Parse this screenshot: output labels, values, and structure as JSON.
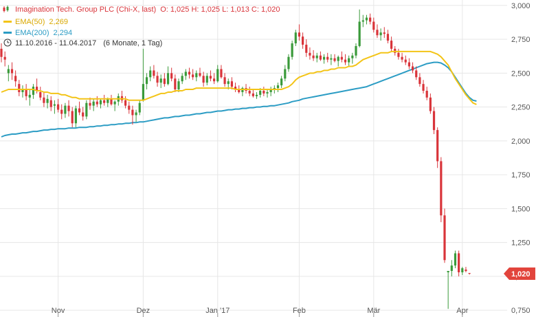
{
  "header": {
    "instrument": "Imagination Tech. Group PLC (Chi-X, last)",
    "ohlc": "O: 1,025  H: 1,025  L: 1,013  C: 1,020",
    "ema50_label": "EMA(50)",
    "ema50_value": "2,269",
    "ema200_label": "EMA(200)",
    "ema200_value": "2,294",
    "date_range": "11.10.2016 - 11.04.2017",
    "period": "(6 Monate, 1 Tag)",
    "instrument_icon": "candlestick-icon",
    "period_icon": "clock-icon"
  },
  "colors": {
    "up": "#3a9a3a",
    "down": "#d9343a",
    "ema50": "#f3c417",
    "ema200": "#2b9cc4",
    "price_badge": "#e2443c",
    "grid": "#e6e6e6"
  },
  "last_price_label": "1,020",
  "chart_data": {
    "type": "candlestick",
    "ylim": [
      0.7,
      3.04
    ],
    "y_ticks": [
      {
        "value": 0.75,
        "label": "0,750"
      },
      {
        "value": 1.0,
        "label": "1,000"
      },
      {
        "value": 1.25,
        "label": "1,250"
      },
      {
        "value": 1.5,
        "label": "1,500"
      },
      {
        "value": 1.75,
        "label": "1,750"
      },
      {
        "value": 2.0,
        "label": "2,000"
      },
      {
        "value": 2.25,
        "label": "2,250"
      },
      {
        "value": 2.5,
        "label": "2,500"
      },
      {
        "value": 2.75,
        "label": "2,750"
      },
      {
        "value": 3.0,
        "label": "3,000"
      }
    ],
    "x_ticks": [
      {
        "index": 16,
        "label": "Nov"
      },
      {
        "index": 40,
        "label": "Dez"
      },
      {
        "index": 61,
        "label": "Jan '17"
      },
      {
        "index": 84,
        "label": "Feb"
      },
      {
        "index": 105,
        "label": "Mär"
      },
      {
        "index": 130,
        "label": "Apr"
      }
    ],
    "last_close": 1.02,
    "ohlc": [
      [
        2.68,
        2.72,
        2.58,
        2.62
      ],
      [
        2.62,
        2.66,
        2.55,
        2.6
      ],
      [
        2.5,
        2.56,
        2.44,
        2.53
      ],
      [
        2.53,
        2.58,
        2.45,
        2.5
      ],
      [
        2.48,
        2.52,
        2.4,
        2.44
      ],
      [
        2.42,
        2.45,
        2.33,
        2.36
      ],
      [
        2.36,
        2.41,
        2.32,
        2.38
      ],
      [
        2.38,
        2.42,
        2.3,
        2.33
      ],
      [
        2.32,
        2.38,
        2.26,
        2.34
      ],
      [
        2.34,
        2.42,
        2.31,
        2.4
      ],
      [
        2.4,
        2.46,
        2.35,
        2.37
      ],
      [
        2.36,
        2.4,
        2.3,
        2.32
      ],
      [
        2.32,
        2.36,
        2.25,
        2.28
      ],
      [
        2.28,
        2.34,
        2.24,
        2.31
      ],
      [
        2.3,
        2.33,
        2.22,
        2.25
      ],
      [
        2.26,
        2.3,
        2.2,
        2.27
      ],
      [
        2.27,
        2.31,
        2.21,
        2.23
      ],
      [
        2.23,
        2.27,
        2.16,
        2.2
      ],
      [
        2.2,
        2.28,
        2.17,
        2.26
      ],
      [
        2.26,
        2.3,
        2.18,
        2.22
      ],
      [
        2.22,
        2.25,
        2.1,
        2.13
      ],
      [
        2.13,
        2.26,
        2.1,
        2.24
      ],
      [
        2.24,
        2.29,
        2.19,
        2.21
      ],
      [
        2.21,
        2.25,
        2.15,
        2.18
      ],
      [
        2.18,
        2.3,
        2.16,
        2.28
      ],
      [
        2.28,
        2.32,
        2.23,
        2.26
      ],
      [
        2.26,
        2.31,
        2.22,
        2.29
      ],
      [
        2.29,
        2.33,
        2.25,
        2.27
      ],
      [
        2.27,
        2.31,
        2.24,
        2.3
      ],
      [
        2.3,
        2.34,
        2.26,
        2.28
      ],
      [
        2.28,
        2.32,
        2.25,
        2.31
      ],
      [
        2.31,
        2.34,
        2.26,
        2.27
      ],
      [
        2.27,
        2.3,
        2.22,
        2.29
      ],
      [
        2.29,
        2.35,
        2.26,
        2.33
      ],
      [
        2.33,
        2.37,
        2.28,
        2.3
      ],
      [
        2.3,
        2.33,
        2.24,
        2.26
      ],
      [
        2.26,
        2.29,
        2.2,
        2.23
      ],
      [
        2.23,
        2.26,
        2.12,
        2.19
      ],
      [
        2.19,
        2.23,
        2.14,
        2.21
      ],
      [
        2.21,
        2.3,
        2.19,
        2.28
      ],
      [
        2.3,
        2.68,
        2.29,
        2.42
      ],
      [
        2.42,
        2.5,
        2.38,
        2.47
      ],
      [
        2.47,
        2.55,
        2.44,
        2.52
      ],
      [
        2.52,
        2.56,
        2.46,
        2.48
      ],
      [
        2.48,
        2.51,
        2.4,
        2.43
      ],
      [
        2.43,
        2.49,
        2.39,
        2.46
      ],
      [
        2.46,
        2.5,
        2.4,
        2.42
      ],
      [
        2.42,
        2.55,
        2.41,
        2.5
      ],
      [
        2.5,
        2.54,
        2.44,
        2.46
      ],
      [
        2.46,
        2.49,
        2.36,
        2.38
      ],
      [
        2.38,
        2.46,
        2.36,
        2.44
      ],
      [
        2.44,
        2.5,
        2.42,
        2.48
      ],
      [
        2.48,
        2.53,
        2.45,
        2.51
      ],
      [
        2.51,
        2.54,
        2.46,
        2.49
      ],
      [
        2.49,
        2.53,
        2.45,
        2.47
      ],
      [
        2.47,
        2.52,
        2.44,
        2.5
      ],
      [
        2.5,
        2.54,
        2.47,
        2.48
      ],
      [
        2.48,
        2.51,
        2.4,
        2.43
      ],
      [
        2.43,
        2.5,
        2.41,
        2.48
      ],
      [
        2.48,
        2.52,
        2.44,
        2.46
      ],
      [
        2.46,
        2.5,
        2.42,
        2.44
      ],
      [
        2.44,
        2.56,
        2.43,
        2.53
      ],
      [
        2.53,
        2.56,
        2.46,
        2.47
      ],
      [
        2.47,
        2.5,
        2.4,
        2.42
      ],
      [
        2.42,
        2.46,
        2.38,
        2.44
      ],
      [
        2.44,
        2.47,
        2.38,
        2.4
      ],
      [
        2.4,
        2.43,
        2.36,
        2.38
      ],
      [
        2.38,
        2.41,
        2.35,
        2.36
      ],
      [
        2.36,
        2.4,
        2.33,
        2.39
      ],
      [
        2.39,
        2.42,
        2.35,
        2.37
      ],
      [
        2.37,
        2.4,
        2.33,
        2.35
      ],
      [
        2.35,
        2.38,
        2.32,
        2.33
      ],
      [
        2.33,
        2.36,
        2.31,
        2.34
      ],
      [
        2.34,
        2.39,
        2.32,
        2.37
      ],
      [
        2.37,
        2.4,
        2.33,
        2.35
      ],
      [
        2.35,
        2.38,
        2.32,
        2.36
      ],
      [
        2.36,
        2.4,
        2.33,
        2.38
      ],
      [
        2.38,
        2.41,
        2.35,
        2.39
      ],
      [
        2.39,
        2.43,
        2.36,
        2.41
      ],
      [
        2.41,
        2.48,
        2.39,
        2.46
      ],
      [
        2.46,
        2.56,
        2.44,
        2.53
      ],
      [
        2.53,
        2.64,
        2.51,
        2.62
      ],
      [
        2.62,
        2.74,
        2.6,
        2.72
      ],
      [
        2.72,
        2.82,
        2.7,
        2.8
      ],
      [
        2.8,
        2.86,
        2.74,
        2.77
      ],
      [
        2.77,
        2.8,
        2.68,
        2.71
      ],
      [
        2.71,
        2.75,
        2.62,
        2.65
      ],
      [
        2.65,
        2.69,
        2.6,
        2.63
      ],
      [
        2.63,
        2.67,
        2.59,
        2.61
      ],
      [
        2.61,
        2.65,
        2.58,
        2.63
      ],
      [
        2.63,
        2.66,
        2.59,
        2.6
      ],
      [
        2.6,
        2.64,
        2.57,
        2.62
      ],
      [
        2.62,
        2.65,
        2.58,
        2.6
      ],
      [
        2.6,
        2.64,
        2.56,
        2.61
      ],
      [
        2.61,
        2.64,
        2.58,
        2.59
      ],
      [
        2.59,
        2.63,
        2.55,
        2.62
      ],
      [
        2.62,
        2.66,
        2.58,
        2.6
      ],
      [
        2.6,
        2.64,
        2.56,
        2.58
      ],
      [
        2.58,
        2.63,
        2.55,
        2.61
      ],
      [
        2.61,
        2.65,
        2.57,
        2.63
      ],
      [
        2.63,
        2.72,
        2.61,
        2.7
      ],
      [
        2.7,
        2.97,
        2.69,
        2.88
      ],
      [
        2.88,
        2.93,
        2.84,
        2.89
      ],
      [
        2.89,
        2.93,
        2.86,
        2.91
      ],
      [
        2.91,
        2.94,
        2.86,
        2.88
      ],
      [
        2.88,
        2.91,
        2.8,
        2.82
      ],
      [
        2.82,
        2.86,
        2.76,
        2.78
      ],
      [
        2.78,
        2.83,
        2.74,
        2.8
      ],
      [
        2.8,
        2.84,
        2.76,
        2.79
      ],
      [
        2.79,
        2.82,
        2.72,
        2.74
      ],
      [
        2.74,
        2.77,
        2.66,
        2.68
      ],
      [
        2.68,
        2.7,
        2.63,
        2.65
      ],
      [
        2.65,
        2.68,
        2.6,
        2.62
      ],
      [
        2.62,
        2.65,
        2.58,
        2.6
      ],
      [
        2.6,
        2.63,
        2.56,
        2.58
      ],
      [
        2.58,
        2.61,
        2.53,
        2.55
      ],
      [
        2.55,
        2.58,
        2.5,
        2.52
      ],
      [
        2.52,
        2.55,
        2.45,
        2.47
      ],
      [
        2.47,
        2.5,
        2.4,
        2.42
      ],
      [
        2.42,
        2.45,
        2.35,
        2.37
      ],
      [
        2.37,
        2.4,
        2.3,
        2.32
      ],
      [
        2.32,
        2.35,
        2.2,
        2.22
      ],
      [
        2.22,
        2.25,
        2.05,
        2.08
      ],
      [
        2.08,
        2.1,
        1.8,
        1.85
      ],
      [
        1.85,
        1.88,
        1.4,
        1.45
      ],
      [
        1.45,
        1.5,
        1.1,
        1.12
      ],
      [
        1.03,
        1.03,
        0.76,
        1.04
      ],
      [
        1.04,
        1.12,
        1.0,
        1.08
      ],
      [
        1.08,
        1.19,
        1.06,
        1.17
      ],
      [
        1.17,
        1.19,
        1.0,
        1.03
      ],
      [
        1.03,
        1.07,
        1.01,
        1.06
      ],
      [
        1.05,
        1.07,
        1.03,
        1.04
      ],
      [
        1.025,
        1.025,
        1.013,
        1.02
      ]
    ],
    "ema50": [
      2.36,
      2.37,
      2.38,
      2.38,
      2.38,
      2.38,
      2.38,
      2.38,
      2.38,
      2.38,
      2.37,
      2.37,
      2.36,
      2.36,
      2.35,
      2.35,
      2.35,
      2.34,
      2.34,
      2.33,
      2.32,
      2.32,
      2.31,
      2.31,
      2.31,
      2.31,
      2.31,
      2.31,
      2.31,
      2.31,
      2.31,
      2.31,
      2.31,
      2.31,
      2.31,
      2.31,
      2.3,
      2.3,
      2.3,
      2.3,
      2.3,
      2.31,
      2.32,
      2.33,
      2.34,
      2.35,
      2.35,
      2.36,
      2.36,
      2.37,
      2.37,
      2.37,
      2.38,
      2.38,
      2.38,
      2.39,
      2.39,
      2.39,
      2.39,
      2.39,
      2.39,
      2.39,
      2.39,
      2.39,
      2.39,
      2.39,
      2.38,
      2.38,
      2.38,
      2.38,
      2.38,
      2.38,
      2.38,
      2.38,
      2.38,
      2.38,
      2.38,
      2.38,
      2.38,
      2.38,
      2.39,
      2.4,
      2.42,
      2.45,
      2.47,
      2.48,
      2.49,
      2.5,
      2.5,
      2.51,
      2.51,
      2.52,
      2.52,
      2.53,
      2.53,
      2.54,
      2.54,
      2.54,
      2.55,
      2.55,
      2.56,
      2.58,
      2.6,
      2.61,
      2.62,
      2.63,
      2.64,
      2.65,
      2.65,
      2.65,
      2.66,
      2.66,
      2.66,
      2.66,
      2.66,
      2.66,
      2.66,
      2.66,
      2.66,
      2.66,
      2.66,
      2.66,
      2.65,
      2.64,
      2.62,
      2.59,
      2.56,
      2.51,
      2.46,
      2.42,
      2.38,
      2.34,
      2.31,
      2.28,
      2.269
    ],
    "ema200": [
      2.03,
      2.04,
      2.045,
      2.05,
      2.05,
      2.055,
      2.06,
      2.06,
      2.065,
      2.07,
      2.07,
      2.075,
      2.08,
      2.08,
      2.085,
      2.085,
      2.09,
      2.09,
      2.09,
      2.095,
      2.095,
      2.095,
      2.1,
      2.1,
      2.1,
      2.105,
      2.105,
      2.11,
      2.11,
      2.115,
      2.115,
      2.12,
      2.12,
      2.125,
      2.125,
      2.13,
      2.13,
      2.135,
      2.135,
      2.14,
      2.14,
      2.145,
      2.15,
      2.155,
      2.16,
      2.165,
      2.17,
      2.17,
      2.175,
      2.18,
      2.18,
      2.185,
      2.19,
      2.19,
      2.195,
      2.2,
      2.2,
      2.205,
      2.21,
      2.21,
      2.215,
      2.22,
      2.22,
      2.225,
      2.23,
      2.23,
      2.235,
      2.235,
      2.24,
      2.24,
      2.245,
      2.245,
      2.25,
      2.25,
      2.255,
      2.255,
      2.26,
      2.26,
      2.265,
      2.27,
      2.275,
      2.28,
      2.29,
      2.295,
      2.3,
      2.31,
      2.315,
      2.32,
      2.325,
      2.33,
      2.335,
      2.34,
      2.345,
      2.35,
      2.355,
      2.36,
      2.365,
      2.37,
      2.375,
      2.38,
      2.385,
      2.39,
      2.395,
      2.4,
      2.41,
      2.42,
      2.43,
      2.44,
      2.45,
      2.46,
      2.47,
      2.48,
      2.49,
      2.5,
      2.51,
      2.52,
      2.53,
      2.54,
      2.55,
      2.56,
      2.57,
      2.575,
      2.58,
      2.58,
      2.575,
      2.56,
      2.54,
      2.51,
      2.47,
      2.43,
      2.39,
      2.35,
      2.32,
      2.3,
      2.294
    ]
  }
}
